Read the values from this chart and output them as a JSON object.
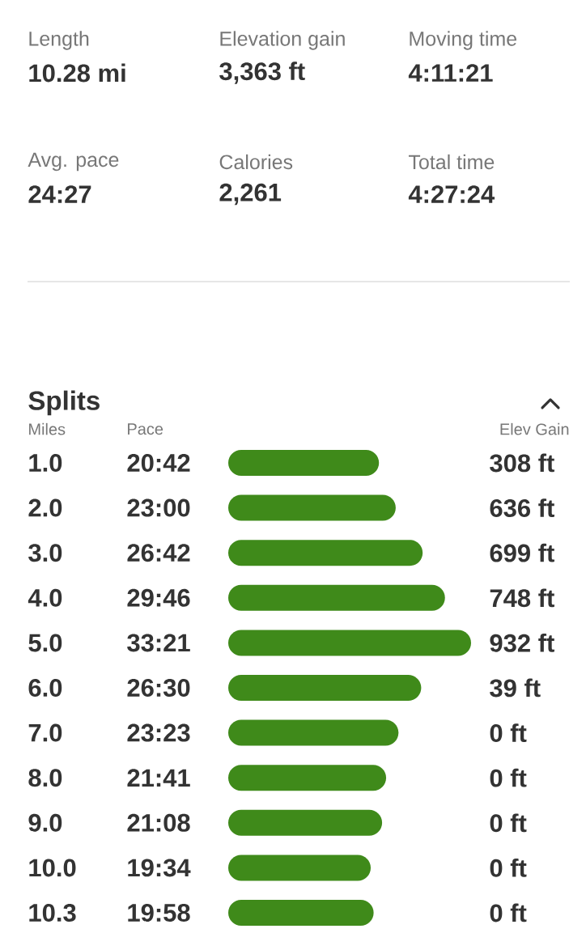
{
  "chart_data": [
    {
      "type": "other",
      "annotations": [
        "Length",
        "10.28 mi",
        "Elevation gain",
        "3,363 ft",
        "Moving time",
        "4:11:21",
        "Avg. pace",
        "24:27",
        "Calories",
        "2,261",
        "Total time",
        "4:27:24"
      ]
    },
    {
      "type": "bar",
      "orientation": "horizontal",
      "title": "Splits",
      "ylabel": "Miles",
      "xlabel": "Pace",
      "color": "#3f8a1a",
      "categories": [
        "1.0",
        "2.0",
        "3.0",
        "4.0",
        "5.0",
        "6.0",
        "7.0",
        "8.0",
        "9.0",
        "10.0",
        "10.3"
      ],
      "values": [
        20.7,
        23.0,
        26.7,
        29.767,
        33.35,
        26.5,
        23.383,
        21.683,
        21.133,
        19.567,
        19.967
      ],
      "value_labels": [
        "20:42",
        "23:00",
        "26:42",
        "29:46",
        "33:21",
        "26:30",
        "23:23",
        "21:41",
        "21:08",
        "19:34",
        "19:58"
      ],
      "annotations": [
        "Elev Gain",
        "308 ft",
        "636 ft",
        "699 ft",
        "748 ft",
        "932 ft",
        "39 ft",
        "0 ft",
        "0 ft",
        "0 ft",
        "0 ft",
        "0 ft"
      ]
    }
  ]
}
